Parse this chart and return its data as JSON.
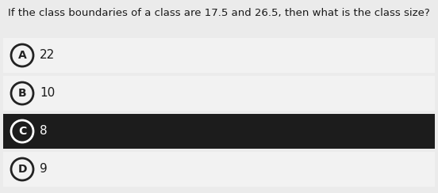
{
  "question": "If the class boundaries of a class are 17.5 and 26.5, then what is the class size?",
  "options": [
    {
      "label": "A",
      "text": "22",
      "selected": false
    },
    {
      "label": "B",
      "text": "10",
      "selected": false
    },
    {
      "label": "C",
      "text": "8",
      "selected": true
    },
    {
      "label": "D",
      "text": "9",
      "selected": false
    }
  ],
  "bg_color": "#ebebeb",
  "option_bg_normal": "#f2f2f2",
  "option_bg_selected": "#1c1c1c",
  "text_color_normal": "#1a1a1a",
  "text_color_selected": "#ffffff",
  "circle_edge_normal": "#222222",
  "circle_edge_selected": "#ffffff",
  "question_fontsize": 9.5,
  "option_fontsize": 11.0,
  "label_fontsize": 10.0,
  "fig_width": 5.52,
  "fig_height": 2.44,
  "dpi": 100
}
